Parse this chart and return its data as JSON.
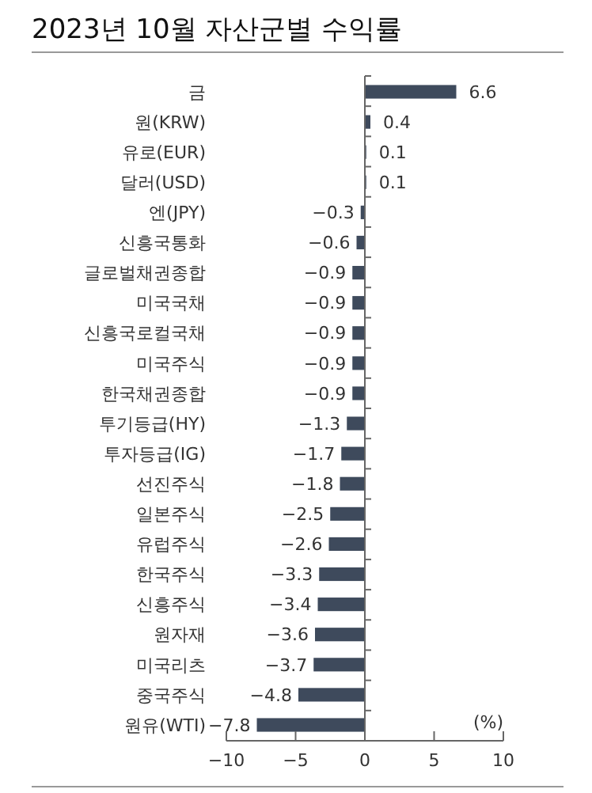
{
  "chart_data": {
    "type": "bar",
    "orientation": "horizontal",
    "title": "2023년 10월 자산군별 수익률",
    "xlabel": "(%)",
    "categories": [
      "금",
      "원(KRW)",
      "유로(EUR)",
      "달러(USD)",
      "엔(JPY)",
      "신흥국통화",
      "글로벌채권종합",
      "미국국채",
      "신흥국로컬국채",
      "미국주식",
      "한국채권종합",
      "투기등급(HY)",
      "투자등급(IG)",
      "선진주식",
      "일본주식",
      "유럽주식",
      "한국주식",
      "신흥주식",
      "원자재",
      "미국리츠",
      "중국주식",
      "원유(WTI)"
    ],
    "values": [
      6.6,
      0.4,
      0.1,
      0.1,
      -0.3,
      -0.6,
      -0.9,
      -0.9,
      -0.9,
      -0.9,
      -0.9,
      -1.3,
      -1.7,
      -1.8,
      -2.5,
      -2.6,
      -3.3,
      -3.4,
      -3.6,
      -3.7,
      -4.8,
      -7.8
    ],
    "color": "#3e4a5c",
    "xlim": [
      -10,
      10
    ],
    "xticks": [
      -10,
      -5,
      0,
      5,
      10
    ],
    "data_labels": true
  }
}
